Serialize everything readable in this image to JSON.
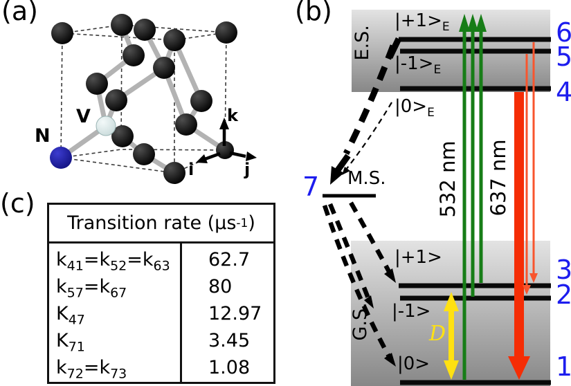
{
  "panel_a": {
    "label": "(a)",
    "nitrogen_label": "N",
    "vacancy_label": "V",
    "axes": {
      "k": "k",
      "i": "i",
      "j": "j"
    },
    "colors": {
      "nitrogen_blue": "#1b1bb0",
      "vacancy_fill": "#d9e6e6",
      "carbon_black": "#0a0a0a",
      "bond_gray": "#b3b3b3"
    }
  },
  "panel_b": {
    "label": "(b)",
    "excited_state": {
      "label": "E.S.",
      "sublevels": [
        {
          "ket": "|+1>",
          "sub": "E"
        },
        {
          "ket": "|-1>",
          "sub": "E"
        },
        {
          "ket": "|0>",
          "sub": "E"
        }
      ]
    },
    "ground_state": {
      "label": "G.S.",
      "sublevels": [
        {
          "ket": "|+1>"
        },
        {
          "ket": "|-1>"
        },
        {
          "ket": "|0>"
        }
      ]
    },
    "metastable_state": {
      "label": "M.S.",
      "number": "7"
    },
    "level_numbers": [
      "1",
      "2",
      "3",
      "4",
      "5",
      "6",
      "7"
    ],
    "excitation_wavelength": "532 nm",
    "emission_wavelength": "637 nm",
    "zero_field_splitting": "D",
    "colors": {
      "excitation_green": "#177d17",
      "emission_red": "#f52d05",
      "emission_red_thin": "#f8552e",
      "splitting_yellow": "#ffe112",
      "level_number_blue": "#1d1dee"
    }
  },
  "panel_c": {
    "label": "(c)",
    "table": {
      "header": {
        "pre": "Transition rate (μs",
        "sup": "-1",
        "post": ")"
      },
      "rows": [
        {
          "terms": [
            {
              "b": "k",
              "s": "41"
            },
            {
              "b": "k",
              "s": "52"
            },
            {
              "b": "k",
              "s": "63"
            }
          ],
          "value": "62.7"
        },
        {
          "terms": [
            {
              "b": "k",
              "s": "57"
            },
            {
              "b": "k",
              "s": "67"
            }
          ],
          "value": "80"
        },
        {
          "terms": [
            {
              "b": "K",
              "s": "47"
            }
          ],
          "value": "12.97"
        },
        {
          "terms": [
            {
              "b": "K",
              "s": "71"
            }
          ],
          "value": "3.45"
        },
        {
          "terms": [
            {
              "b": "k",
              "s": "72"
            },
            {
              "b": "k",
              "s": "73"
            }
          ],
          "value": "1.08"
        }
      ]
    }
  }
}
